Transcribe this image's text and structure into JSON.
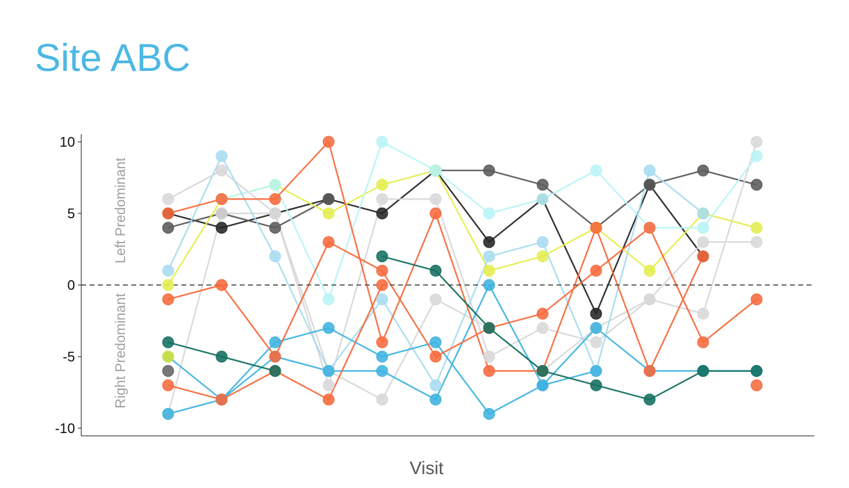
{
  "chart_data": {
    "type": "line",
    "title": "Site ABC",
    "xlabel": "Visit",
    "ylabel_top": "Left Predominant",
    "ylabel_bottom": "Right Predominant",
    "ylim": [
      -10,
      10
    ],
    "yticks": [
      10,
      5,
      0,
      -5,
      -10
    ],
    "ytick_labels": [
      "10",
      "5",
      "0",
      "-5",
      "-10"
    ],
    "reference_line": 0,
    "grid": false,
    "x": [
      1,
      2,
      3,
      4,
      5,
      6,
      7,
      8,
      9,
      10,
      11,
      12
    ],
    "series": [
      {
        "color": "#262626",
        "values": [
          5,
          4,
          5,
          6,
          5,
          8,
          3,
          6,
          -2,
          7,
          2,
          null
        ]
      },
      {
        "color": "#5a5a5a",
        "values": [
          4,
          5,
          4,
          6,
          null,
          8,
          8,
          7,
          4,
          7,
          8,
          7
        ]
      },
      {
        "color": "#d8d8d8",
        "values": [
          6,
          8,
          5,
          -7,
          6,
          6,
          -5,
          -3,
          -4,
          -1,
          -2,
          10
        ]
      },
      {
        "color": "#d8d8d8",
        "values": [
          -9,
          5,
          5,
          -6,
          -8,
          -1,
          -3,
          -6,
          -3,
          -1,
          3,
          3
        ]
      },
      {
        "color": "#e4ee4e",
        "values": [
          0,
          6,
          7,
          5,
          7,
          8,
          1,
          2,
          4,
          1,
          5,
          4
        ]
      },
      {
        "color": "#b8f4f6",
        "values": [
          null,
          6,
          7,
          -1,
          10,
          8,
          5,
          6,
          8,
          4,
          4,
          9
        ]
      },
      {
        "color": "#a8dcf0",
        "values": [
          1,
          9,
          2,
          -6,
          -1,
          -7,
          2,
          3,
          -6,
          8,
          5,
          null
        ]
      },
      {
        "color": "#3fb3df",
        "values": [
          -5,
          -8,
          -4,
          -3,
          -5,
          -4,
          -9,
          -7,
          -6,
          null,
          null,
          null
        ]
      },
      {
        "color": "#3fb3df",
        "values": [
          -9,
          -8,
          -5,
          -6,
          -6,
          -8,
          0,
          -7,
          -3,
          -6,
          -6,
          -6
        ]
      },
      {
        "color": "#f76a3c",
        "values": [
          5,
          6,
          6,
          10,
          -4,
          5,
          -6,
          -6,
          4,
          -6,
          2,
          null
        ]
      },
      {
        "color": "#f76a3c",
        "values": [
          -1,
          0,
          -5,
          3,
          1,
          -5,
          -3,
          -2,
          1,
          4,
          -4,
          -1
        ]
      },
      {
        "color": "#f76a3c",
        "values": [
          -7,
          -8,
          -6,
          -8,
          0,
          null,
          null,
          null,
          null,
          null,
          null,
          -7
        ]
      },
      {
        "color": "#147060",
        "values": [
          -4,
          -5,
          -6,
          null,
          2,
          1,
          -3,
          -6,
          -7,
          -8,
          -6,
          -6
        ]
      },
      {
        "color": "#646464",
        "values": [
          -6,
          null,
          null,
          null,
          null,
          null,
          null,
          null,
          null,
          null,
          null,
          null
        ]
      },
      {
        "color": "#d5e23a",
        "values": [
          -5,
          null,
          null,
          null,
          null,
          null,
          null,
          null,
          null,
          null,
          null,
          null
        ]
      }
    ]
  }
}
